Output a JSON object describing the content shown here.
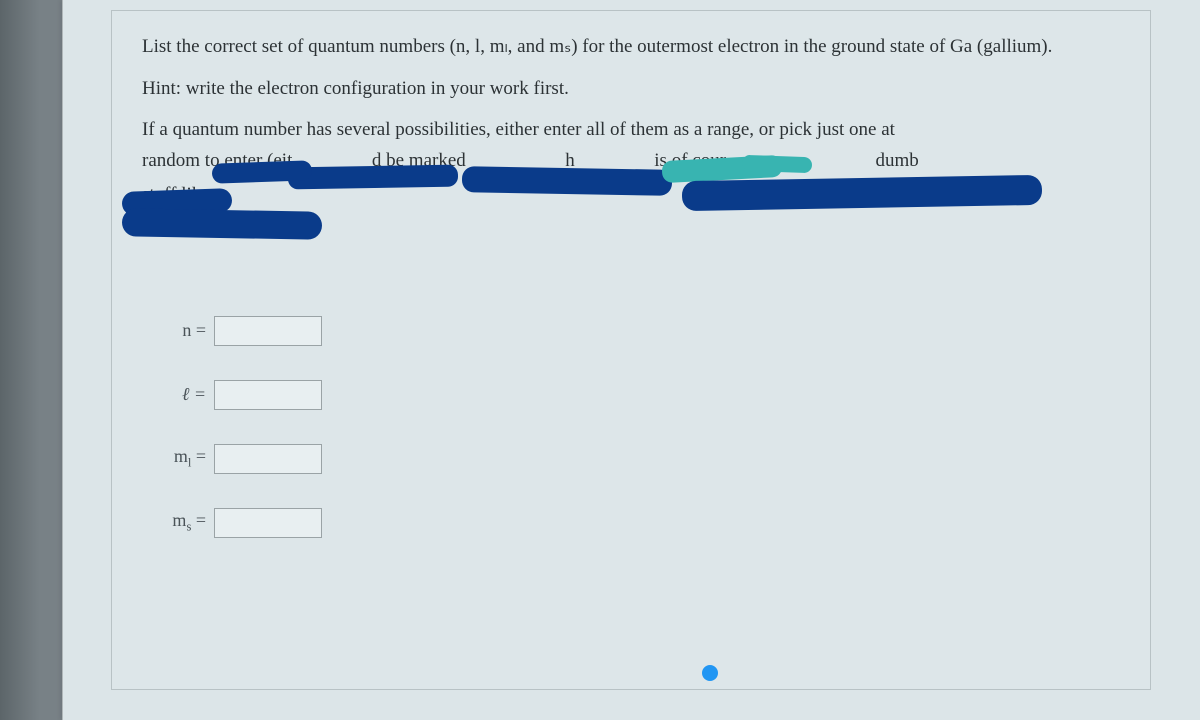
{
  "colors": {
    "page_bg": "#788186",
    "card_bg": "#dce5e8",
    "question_border": "#b8c2c5",
    "text": "#2c3235",
    "redact_blue": "#0a3b8a",
    "redact_teal": "#38b4b1",
    "dot": "#2196f3"
  },
  "question": {
    "line1": "List the correct set of quantum numbers (n, l, mₗ, and mₛ) for the outermost electron in the ground state of Ga (gallium).",
    "hint": "Hint: write the electron configuration in your work first.",
    "line3": "If a quantum number has several possibilities, either enter all of them as a range, or pick just one at",
    "partial": {
      "frag1": "random to enter (eit",
      "frag2": "d be marked",
      "frag3": "h",
      "frag4": "is of cour",
      "frag5": "dumb",
      "frag6": "stuff like"
    }
  },
  "fields": [
    {
      "label_html": "n =",
      "value": ""
    },
    {
      "label_html": "ℓ =",
      "value": ""
    },
    {
      "label_html": "m<sub>l</sub> =",
      "value": ""
    },
    {
      "label_html": "m<sub>s</sub> =",
      "value": ""
    }
  ]
}
